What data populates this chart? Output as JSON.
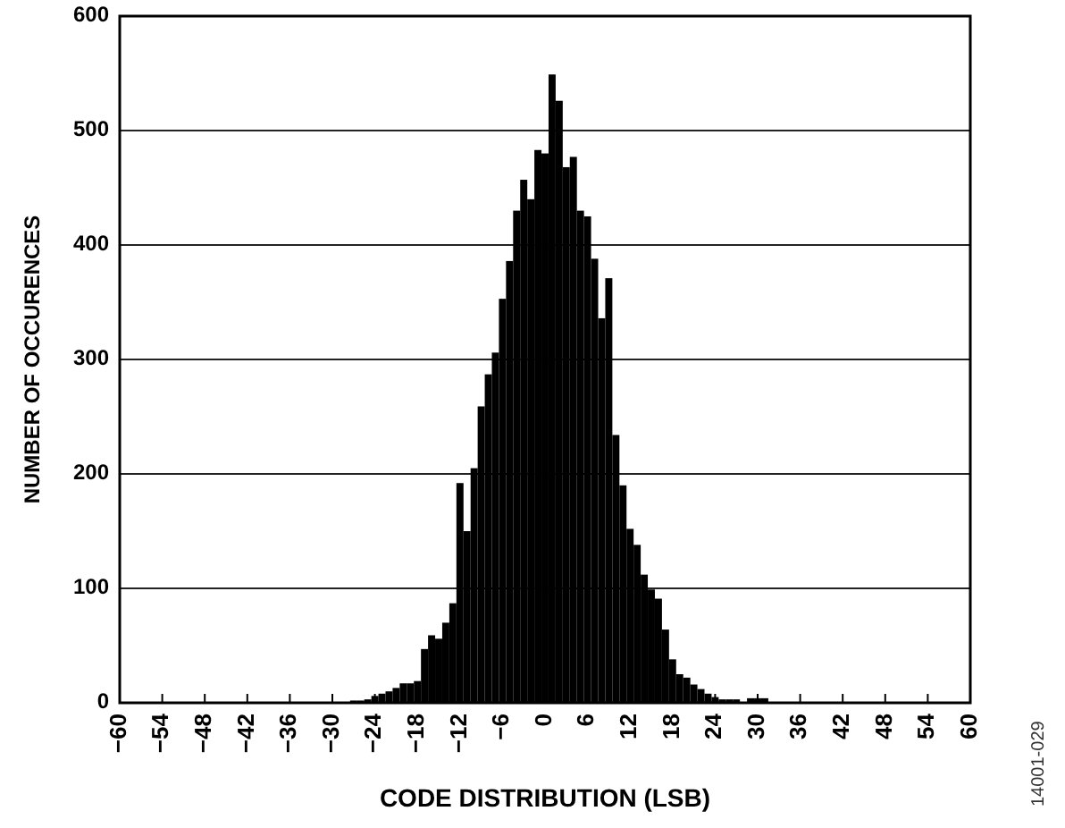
{
  "chart_data": {
    "type": "histogram",
    "xlabel": "CODE DISTRIBUTION (LSB)",
    "ylabel": "NUMBER OF OCCURENCES",
    "annotations": [
      "14001-029"
    ],
    "color": "#000000",
    "bins": [
      -30.5,
      -29.5,
      -28.5,
      -27.5,
      -26.5,
      -25.5,
      -24.5,
      -23.5,
      -22.5,
      -21.5,
      -20.5,
      -19.5,
      -18.5,
      -17.5,
      -16.5,
      -15.5,
      -14.5,
      -13.5,
      -12.5,
      -11.5,
      -10.5,
      -9.5,
      -8.5,
      -7.5,
      -6.5,
      -5.5,
      -4.5,
      -3.5,
      -2.5,
      -1.5,
      -0.5,
      0.5,
      1.5,
      2.5,
      3.5,
      4.5,
      5.5,
      6.5,
      7.5,
      8.5,
      9.5,
      10.5,
      11.5,
      12.5,
      13.5,
      14.5,
      15.5,
      16.5,
      17.5,
      18.5,
      19.5,
      20.5,
      21.5,
      22.5,
      23.5,
      24.5,
      25.5,
      26.5,
      27.5,
      28.5,
      29.5,
      30.5,
      31.5
    ],
    "values": [
      0,
      0,
      null,
      2,
      2,
      3,
      6,
      8,
      10,
      13,
      17,
      17,
      19,
      47,
      59,
      56,
      70,
      87,
      192,
      150,
      205,
      259,
      287,
      306,
      353,
      386,
      430,
      457,
      440,
      483,
      480,
      549,
      526,
      468,
      477,
      430,
      425,
      388,
      336,
      371,
      234,
      190,
      152,
      138,
      112,
      99,
      91,
      64,
      38,
      25,
      22,
      16,
      12,
      8,
      5,
      3,
      3,
      3,
      null,
      4,
      4,
      4
    ],
    "xlim": [
      -60,
      60
    ],
    "xticks": [
      {
        "value": -60,
        "label": "−60"
      },
      {
        "value": -54,
        "label": "−54"
      },
      {
        "value": -48,
        "label": "−48"
      },
      {
        "value": -42,
        "label": "−42"
      },
      {
        "value": -36,
        "label": "−36"
      },
      {
        "value": -30,
        "label": "−30"
      },
      {
        "value": -24,
        "label": "−24"
      },
      {
        "value": -18,
        "label": "−18"
      },
      {
        "value": -12,
        "label": "−12"
      },
      {
        "value": -6,
        "label": "−6"
      },
      0,
      6,
      12,
      18,
      24,
      30,
      36,
      42,
      48,
      54,
      60
    ],
    "ylim": [
      0,
      600
    ],
    "yticks": [
      0,
      100,
      200,
      300,
      400,
      500,
      600
    ],
    "grid": "y"
  }
}
